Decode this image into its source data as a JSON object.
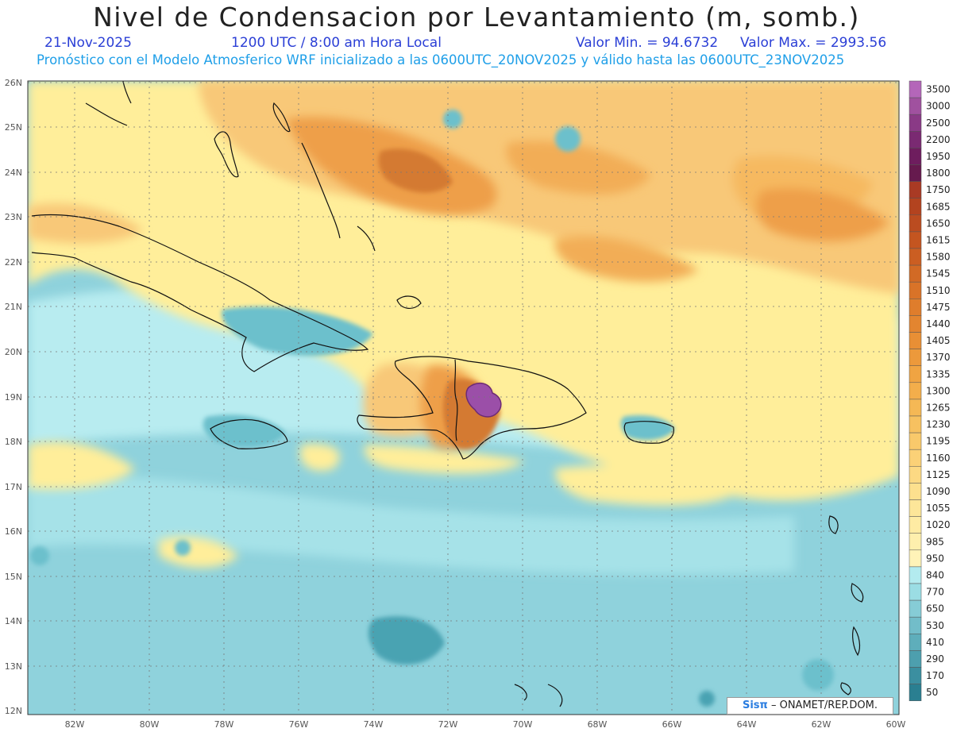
{
  "header": {
    "title": "Nivel de Condensacion por Levantamiento (m, somb.)",
    "date": "21-Nov-2025",
    "time": "1200 UTC / 8:00 am Hora Local",
    "min_label": "Valor Min. = 94.6732",
    "max_label": "Valor Max. = 2993.56",
    "info": "Pronóstico con el Modelo Atmosferico WRF inicializado a las 0600UTC_20NOV2025 y válido hasta las  0600UTC_23NOV2025"
  },
  "map": {
    "lat_labels": [
      "26N",
      "25N",
      "24N",
      "23N",
      "22N",
      "21N",
      "20N",
      "19N",
      "18N",
      "17N",
      "16N",
      "15N",
      "14N",
      "13N",
      "12N"
    ],
    "lon_labels": [
      "82W",
      "80W",
      "78W",
      "76W",
      "74W",
      "72W",
      "70W",
      "68W",
      "66W",
      "64W",
      "62W",
      "60W"
    ],
    "colors": {
      "sea_base": "#8fd2dc",
      "teal_dark": "#4aa3b2",
      "teal_mid": "#6cc0cc",
      "light_cyan": "#b8ecf0",
      "yellow": "#ffee9a",
      "light_orange": "#f8c878",
      "orange": "#ee9f48",
      "dark_orange": "#d47a30",
      "purple": "#9b4fa8"
    }
  },
  "colorbar": {
    "labels": [
      "3500",
      "3000",
      "2500",
      "2200",
      "1950",
      "1800",
      "1750",
      "1685",
      "1650",
      "1615",
      "1580",
      "1545",
      "1510",
      "1475",
      "1440",
      "1405",
      "1370",
      "1335",
      "1300",
      "1265",
      "1230",
      "1195",
      "1160",
      "1125",
      "1090",
      "1055",
      "1020",
      "985",
      "950",
      "840",
      "770",
      "650",
      "530",
      "410",
      "290",
      "170",
      "50"
    ],
    "colors": [
      "#b466b9",
      "#a0519f",
      "#8a3a86",
      "#7a2a72",
      "#6e1d5e",
      "#661a4e",
      "#a93a24",
      "#b3431f",
      "#bb4c20",
      "#c45520",
      "#cb5e22",
      "#d26a25",
      "#d97328",
      "#df7d2c",
      "#e38530",
      "#e88f35",
      "#ec993b",
      "#f0a442",
      "#f3ae4b",
      "#f5b855",
      "#f7c160",
      "#f9c96b",
      "#fbd177",
      "#fcd983",
      "#fde08e",
      "#fde699",
      "#feeba3",
      "#feefad",
      "#fff3b8",
      "#b3ebef",
      "#9bdde4",
      "#86ccd6",
      "#72bdc9",
      "#5eaebb",
      "#4d9fae",
      "#3b8fa0",
      "#2a7f91"
    ]
  },
  "footer": {
    "credit_logo": "Sisπ",
    "credit_text": "– ONAMET/REP.DOM."
  }
}
